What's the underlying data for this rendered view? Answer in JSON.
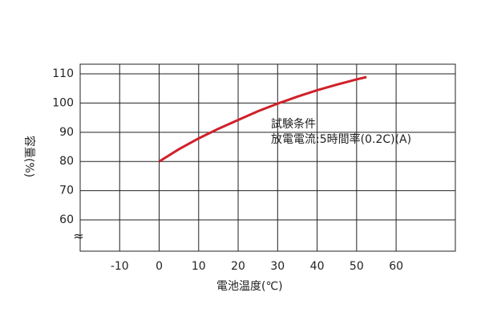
{
  "chart_data": {
    "type": "line",
    "x_label": "電池温度(℃)",
    "y_label": "容量(%)",
    "annotations": [
      "試験条件",
      "放電電流:5時間率(0.2C)(A)"
    ],
    "axis_break": "≈",
    "series": [
      {
        "color": "#d0202a",
        "x": [
          0,
          5,
          10,
          15,
          20,
          25,
          30,
          35,
          40,
          45,
          50,
          52.5
        ],
        "values": [
          80,
          84.2,
          87.9,
          91.2,
          94.2,
          97.2,
          99.8,
          102.2,
          104.4,
          106.3,
          108.1,
          108.9
        ]
      }
    ],
    "xlim": [
      -20,
      75
    ],
    "xticks": [
      -10,
      0,
      10,
      20,
      30,
      40,
      50,
      60
    ],
    "ylim": [
      49.3,
      113.3
    ],
    "yticks": [
      60,
      70,
      80,
      90,
      100,
      110
    ],
    "grid": true
  }
}
